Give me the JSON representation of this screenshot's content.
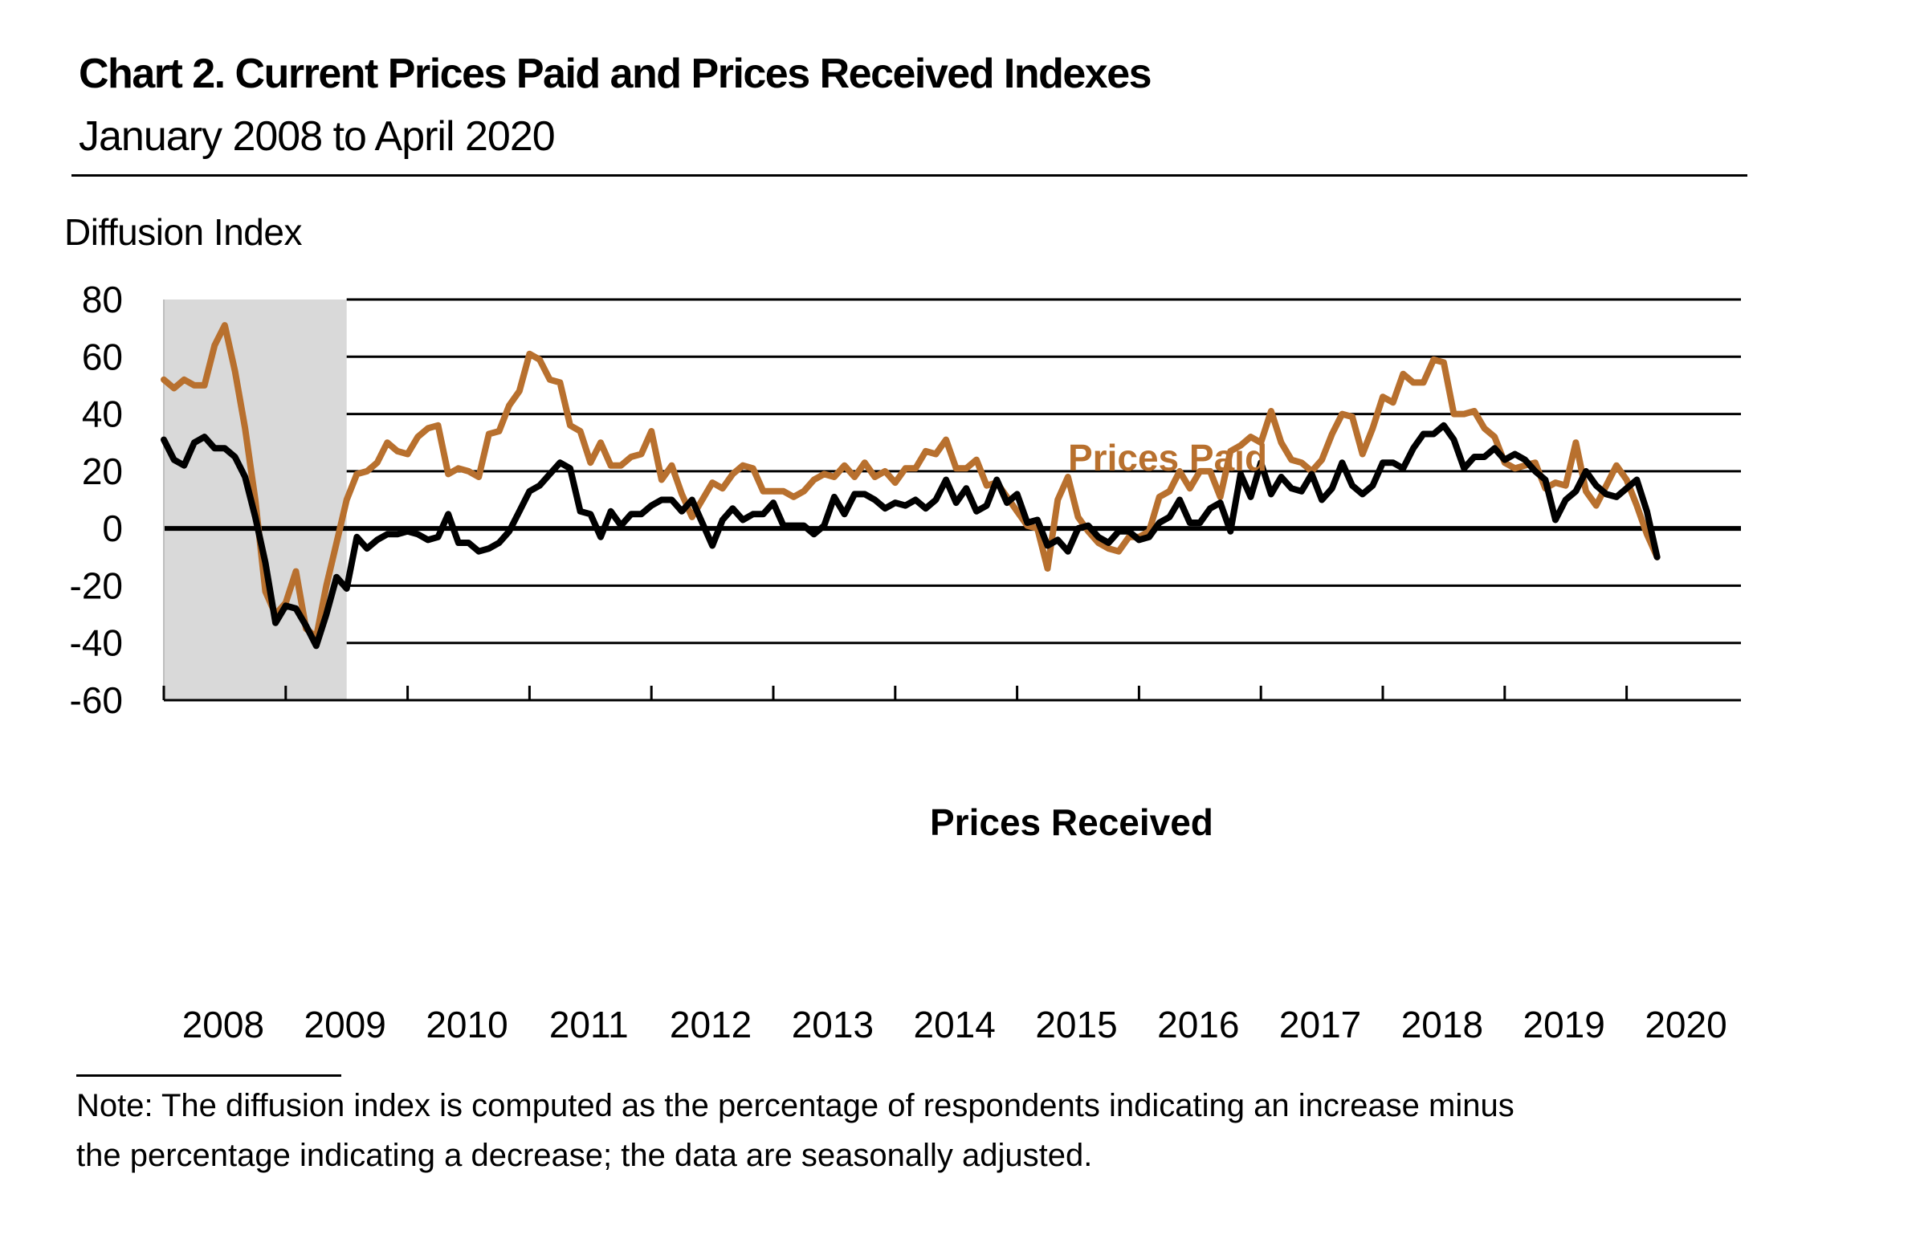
{
  "header": {
    "title": "Chart 2. Current Prices Paid and Prices Received Indexes",
    "subtitle": "January 2008 to April 2020"
  },
  "note": {
    "line1": "Note: The diffusion index is computed as the percentage of respondents indicating an increase minus",
    "line2": "the percentage indicating a decrease; the data are seasonally adjusted."
  },
  "colors": {
    "prices_paid": "#B8702E",
    "prices_received": "#000000",
    "recession_shading": "#D9D9D9",
    "gridline": "#000000"
  },
  "chart_data": {
    "type": "line",
    "title": "Chart 2. Current Prices Paid and Prices Received Indexes",
    "subtitle": "January 2008 to April 2020",
    "xlabel": "",
    "ylabel": "Diffusion Index",
    "ylim": [
      -60,
      80
    ],
    "yticks": [
      80,
      60,
      40,
      20,
      0,
      -20,
      -40,
      -60
    ],
    "ytick_labels": [
      "80",
      "60",
      "40",
      "20",
      "0",
      "-20",
      "-40",
      "-60"
    ],
    "x_start": "2008-01",
    "x_end": "2020-04",
    "frequency": "monthly",
    "xtick_labels": [
      "2008",
      "2009",
      "2010",
      "2011",
      "2012",
      "2013",
      "2014",
      "2015",
      "2016",
      "2017",
      "2018",
      "2019",
      "2020"
    ],
    "grid": true,
    "legend": "inline labels",
    "shaded_periods": [
      {
        "label": "recession",
        "start": "2008-01",
        "end": "2009-06"
      }
    ],
    "series": [
      {
        "name": "Prices Paid",
        "label_position": "upper-center-right",
        "values": [
          52,
          49,
          52,
          50,
          50,
          64,
          71,
          55,
          35,
          10,
          -22,
          -30,
          -26,
          -15,
          -35,
          -38,
          -20,
          -5,
          10,
          19,
          20,
          23,
          30,
          27,
          26,
          32,
          35,
          36,
          19,
          21,
          20,
          18,
          33,
          34,
          43,
          48,
          61,
          59,
          52,
          51,
          36,
          34,
          23,
          30,
          22,
          22,
          25,
          26,
          34,
          17,
          22,
          12,
          4,
          10,
          16,
          14,
          19,
          22,
          21,
          13,
          13,
          13,
          11,
          13,
          17,
          19,
          18,
          22,
          18,
          23,
          18,
          20,
          16,
          21,
          21,
          27,
          26,
          31,
          21,
          21,
          24,
          15,
          16,
          11,
          6,
          1,
          0,
          -14,
          10,
          18,
          4,
          -1,
          -5,
          -7,
          -8,
          -3,
          -3,
          -1,
          11,
          13,
          20,
          14,
          20,
          20,
          11,
          27,
          29,
          32,
          30,
          41,
          30,
          24,
          23,
          20,
          24,
          33,
          40,
          39,
          26,
          35,
          46,
          44,
          54,
          51,
          51,
          59,
          58,
          40,
          40,
          41,
          35,
          32,
          23,
          21,
          22,
          23,
          14,
          16,
          15,
          30,
          13,
          8,
          15,
          22,
          17,
          8,
          -2,
          -10
        ]
      },
      {
        "name": "Prices Received",
        "label_position": "lower-center",
        "values": [
          31,
          24,
          22,
          30,
          32,
          28,
          28,
          25,
          18,
          4,
          -12,
          -33,
          -27,
          -28,
          -34,
          -41,
          -30,
          -17,
          -21,
          -3,
          -7,
          -4,
          -2,
          -2,
          -1,
          -2,
          -4,
          -3,
          5,
          -5,
          -5,
          -8,
          -7,
          -5,
          -1,
          6,
          13,
          15,
          19,
          23,
          21,
          6,
          5,
          -3,
          6,
          1,
          5,
          5,
          8,
          10,
          10,
          6,
          10,
          2,
          -6,
          3,
          7,
          3,
          5,
          5,
          9,
          1,
          1,
          1,
          -2,
          1,
          11,
          5,
          12,
          12,
          10,
          7,
          9,
          8,
          10,
          7,
          10,
          17,
          9,
          14,
          6,
          8,
          17,
          9,
          12,
          2,
          3,
          -6,
          -4,
          -8,
          0,
          1,
          -3,
          -5,
          -1,
          -1,
          -4,
          -3,
          2,
          4,
          10,
          2,
          2,
          7,
          9,
          -1,
          19,
          11,
          23,
          12,
          18,
          14,
          13,
          19,
          10,
          14,
          23,
          15,
          12,
          15,
          23,
          23,
          21,
          28,
          33,
          33,
          36,
          31,
          21,
          25,
          25,
          28,
          24,
          26,
          24,
          20,
          17,
          3,
          10,
          13,
          20,
          15,
          12,
          11,
          14,
          17,
          6,
          -10
        ]
      }
    ]
  }
}
